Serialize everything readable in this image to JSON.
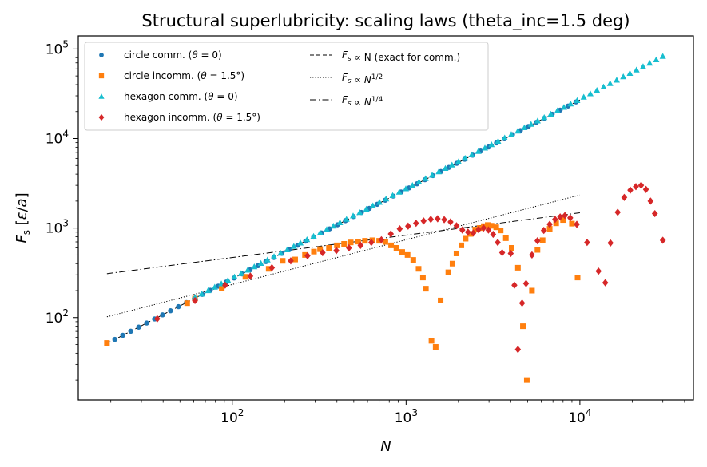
{
  "chart_data": {
    "type": "scatter",
    "title": "Structural superlubricity: scaling laws  (theta_inc=1.5 deg)",
    "xlabel": "N",
    "ylabel": "F_s [ε/a]",
    "xscale": "log",
    "yscale": "log",
    "xlim": [
      13,
      45000
    ],
    "ylim": [
      12,
      140000
    ],
    "x_ticks": [
      {
        "value": 100,
        "label": "10^2"
      },
      {
        "value": 1000,
        "label": "10^3"
      },
      {
        "value": 10000,
        "label": "10^4"
      }
    ],
    "y_ticks": [
      {
        "value": 100,
        "label": "10^2"
      },
      {
        "value": 1000,
        "label": "10^3"
      },
      {
        "value": 10000,
        "label": "10^4"
      },
      {
        "value": 100000,
        "label": "10^5"
      }
    ],
    "grid": false,
    "legend_position": "top-left",
    "series": [
      {
        "name": "circle comm. (θ = 0)",
        "marker": "circle",
        "color": "#1f77b4",
        "x_range": [
          19,
          9500
        ],
        "points": 60,
        "relation": "F_s = 2.7 N"
      },
      {
        "name": "circle incomm. (θ = 1.5°)",
        "marker": "square",
        "color": "#ff7f0e",
        "points_xy": [
          [
            19,
            52
          ],
          [
            55,
            145
          ],
          [
            61,
            163
          ],
          [
            87,
            213
          ],
          [
            119,
            285
          ],
          [
            162,
            350
          ],
          [
            195,
            430
          ],
          [
            230,
            445
          ],
          [
            262,
            500
          ],
          [
            295,
            545
          ],
          [
            320,
            580
          ],
          [
            360,
            600
          ],
          [
            400,
            640
          ],
          [
            440,
            665
          ],
          [
            480,
            690
          ],
          [
            530,
            705
          ],
          [
            580,
            720
          ],
          [
            640,
            730
          ],
          [
            700,
            720
          ],
          [
            760,
            700
          ],
          [
            820,
            640
          ],
          [
            880,
            600
          ],
          [
            950,
            540
          ],
          [
            1020,
            500
          ],
          [
            1100,
            440
          ],
          [
            1180,
            350
          ],
          [
            1250,
            280
          ],
          [
            1300,
            210
          ],
          [
            1400,
            55
          ],
          [
            1480,
            47
          ],
          [
            1580,
            155
          ],
          [
            1750,
            320
          ],
          [
            1850,
            400
          ],
          [
            1950,
            520
          ],
          [
            2080,
            640
          ],
          [
            2200,
            760
          ],
          [
            2340,
            860
          ],
          [
            2500,
            960
          ],
          [
            2650,
            1000
          ],
          [
            2800,
            1050
          ],
          [
            2950,
            1080
          ],
          [
            3100,
            1060
          ],
          [
            3300,
            1020
          ],
          [
            3500,
            940
          ],
          [
            3750,
            770
          ],
          [
            4050,
            600
          ],
          [
            4400,
            360
          ],
          [
            4700,
            80
          ],
          [
            4950,
            20
          ],
          [
            5300,
            200
          ],
          [
            5700,
            570
          ],
          [
            6100,
            730
          ],
          [
            6700,
            980
          ],
          [
            7300,
            1130
          ],
          [
            8000,
            1230
          ],
          [
            9000,
            1120
          ],
          [
            9700,
            280
          ]
        ]
      },
      {
        "name": "hexagon comm. (θ = 0)",
        "marker": "triangle",
        "color": "#17becf",
        "x_range": [
          61,
          30000
        ],
        "points": 72,
        "relation": "F_s = 2.75 N"
      },
      {
        "name": "hexagon incomm. (θ = 1.5°)",
        "marker": "diamond",
        "color": "#d62728",
        "points_xy": [
          [
            37,
            97
          ],
          [
            61,
            155
          ],
          [
            91,
            230
          ],
          [
            127,
            290
          ],
          [
            169,
            360
          ],
          [
            217,
            430
          ],
          [
            271,
            490
          ],
          [
            331,
            530
          ],
          [
            397,
            560
          ],
          [
            469,
            600
          ],
          [
            547,
            640
          ],
          [
            631,
            690
          ],
          [
            721,
            740
          ],
          [
            817,
            860
          ],
          [
            919,
            980
          ],
          [
            1027,
            1050
          ],
          [
            1141,
            1130
          ],
          [
            1261,
            1200
          ],
          [
            1387,
            1250
          ],
          [
            1519,
            1270
          ],
          [
            1657,
            1240
          ],
          [
            1801,
            1170
          ],
          [
            1951,
            1060
          ],
          [
            2107,
            950
          ],
          [
            2269,
            900
          ],
          [
            2437,
            880
          ],
          [
            2611,
            960
          ],
          [
            2791,
            1000
          ],
          [
            2977,
            950
          ],
          [
            3169,
            850
          ],
          [
            3367,
            690
          ],
          [
            3571,
            530
          ],
          [
            4000,
            520
          ],
          [
            4200,
            230
          ],
          [
            4400,
            44
          ],
          [
            4650,
            145
          ],
          [
            4900,
            240
          ],
          [
            5300,
            500
          ],
          [
            5700,
            720
          ],
          [
            6200,
            940
          ],
          [
            6700,
            1100
          ],
          [
            7200,
            1250
          ],
          [
            7700,
            1330
          ],
          [
            8200,
            1380
          ],
          [
            8800,
            1300
          ],
          [
            9600,
            1100
          ],
          [
            11000,
            690
          ],
          [
            12800,
            330
          ],
          [
            14000,
            245
          ],
          [
            15000,
            680
          ],
          [
            16500,
            1500
          ],
          [
            18000,
            2200
          ],
          [
            19500,
            2650
          ],
          [
            21000,
            2900
          ],
          [
            22500,
            3000
          ],
          [
            24000,
            2700
          ],
          [
            25500,
            2000
          ],
          [
            27000,
            1450
          ],
          [
            30000,
            730
          ]
        ]
      }
    ],
    "reference_lines": [
      {
        "name": "F_s ∝ N (exact for comm.)",
        "style": "dashed",
        "x_range": [
          19,
          10000
        ],
        "prefactor": 2.7,
        "exponent": 1.0
      },
      {
        "name": "F_s ∝ N^1/2",
        "style": "dotted",
        "x_range": [
          19,
          10000
        ],
        "prefactor": 23.4,
        "exponent": 0.5
      },
      {
        "name": "F_s ∝ N^1/4",
        "style": "dashdot",
        "x_range": [
          19,
          10000
        ],
        "prefactor": 148,
        "exponent": 0.25
      }
    ]
  }
}
